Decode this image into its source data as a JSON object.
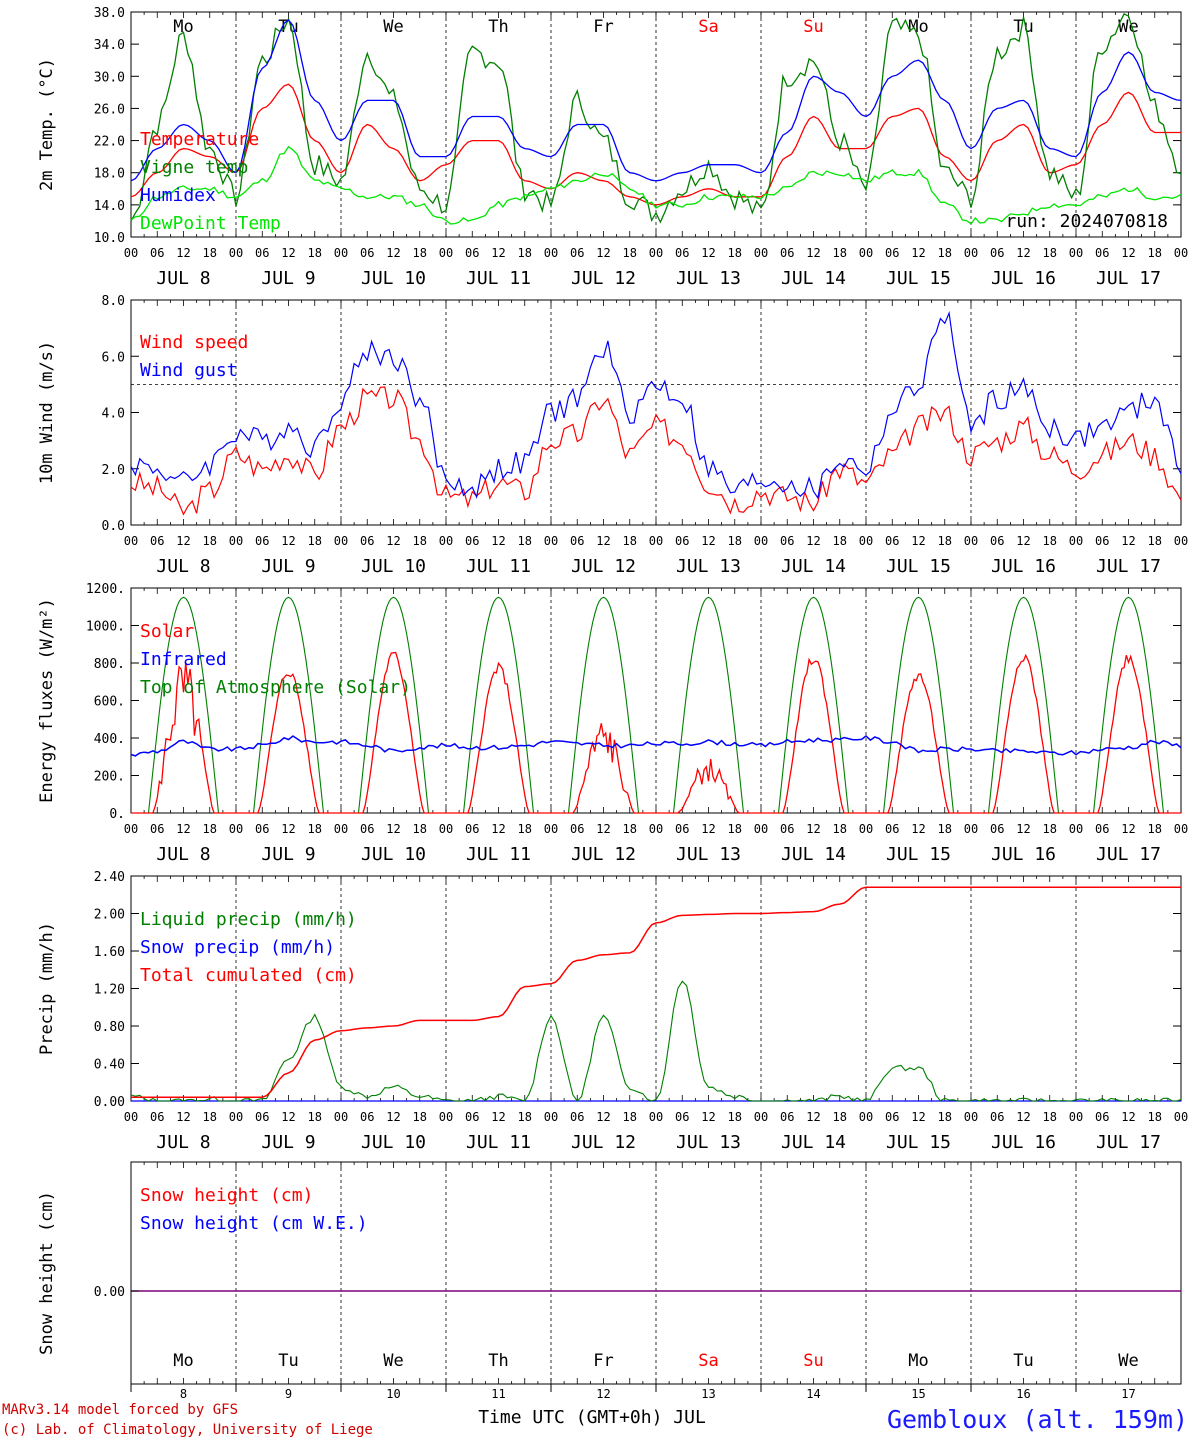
{
  "run_label": "run: 2024070818",
  "days": [
    {
      "name": "Mo",
      "weekend": false,
      "date": "JUL  8",
      "num": "8"
    },
    {
      "name": "Tu",
      "weekend": false,
      "date": "JUL  9",
      "num": "9"
    },
    {
      "name": "We",
      "weekend": false,
      "date": "JUL 10",
      "num": "10"
    },
    {
      "name": "Th",
      "weekend": false,
      "date": "JUL 11",
      "num": "11"
    },
    {
      "name": "Fr",
      "weekend": false,
      "date": "JUL 12",
      "num": "12"
    },
    {
      "name": "Sa",
      "weekend": true,
      "date": "JUL 13",
      "num": "13"
    },
    {
      "name": "Su",
      "weekend": true,
      "date": "JUL 14",
      "num": "14"
    },
    {
      "name": "Mo",
      "weekend": false,
      "date": "JUL 15",
      "num": "15"
    },
    {
      "name": "Tu",
      "weekend": false,
      "date": "JUL 16",
      "num": "16"
    },
    {
      "name": "We",
      "weekend": false,
      "date": "JUL 17",
      "num": "17"
    }
  ],
  "hour_labels": [
    "00",
    "06",
    "12",
    "18"
  ],
  "final_hour_label": "00",
  "x_axis_title": "Time UTC (GMT+0h) JUL",
  "footer": {
    "model": "MARv3.14 model forced by GFS",
    "lab": "(c) Lab. of Climatology, University of Liege",
    "station": "Gembloux (alt. 159m)"
  },
  "colors": {
    "red": "#ff0000",
    "blue": "#0000ff",
    "green": "#007f00",
    "lime": "#00e600",
    "weekend": "#ff0000",
    "purple": "#7f007f"
  },
  "chart_data": [
    {
      "id": "temp",
      "type": "line",
      "ylabel": "2m Temp. (°C)",
      "ylim": [
        10,
        38
      ],
      "yticks": [
        "10.0",
        "14.0",
        "18.0",
        "22.0",
        "26.0",
        "30.0",
        "34.0",
        "38.0"
      ],
      "grid": "vertical dashed at 00 UTC",
      "legend_position": "left",
      "x_hours": [
        0,
        6,
        12,
        18,
        24,
        30,
        36,
        42,
        48,
        54,
        60,
        66,
        72,
        78,
        84,
        90,
        96,
        102,
        108,
        114,
        120,
        126,
        132,
        138,
        144,
        150,
        156,
        162,
        168,
        174,
        180,
        186,
        192,
        198,
        204,
        210,
        216,
        222,
        228,
        234,
        240
      ],
      "series": [
        {
          "name": "Temperature",
          "color": "#ff0000",
          "values": [
            15,
            18,
            21,
            20,
            18,
            26,
            29,
            22,
            18,
            24,
            21,
            17,
            19,
            22,
            22,
            17,
            16,
            18,
            17,
            15,
            14,
            15,
            16,
            15,
            15,
            20,
            25,
            21,
            21,
            25,
            26,
            20,
            17,
            22,
            24,
            18,
            19,
            24,
            28,
            23,
            23
          ]
        },
        {
          "name": "Vigne temp",
          "color": "#007f00",
          "values": [
            12,
            24,
            35,
            21,
            15,
            32,
            37,
            19,
            17,
            33,
            27,
            16,
            14,
            33,
            32,
            16,
            14,
            27,
            22,
            15,
            13,
            16,
            19,
            15,
            13,
            30,
            32,
            22,
            16,
            36,
            35,
            18,
            15,
            33,
            36,
            18,
            15,
            34,
            38,
            26,
            19
          ]
        },
        {
          "name": "Humidex",
          "color": "#0000ff",
          "values": [
            17,
            21,
            24,
            22,
            18,
            31,
            37,
            27,
            22,
            27,
            27,
            20,
            20,
            25,
            25,
            21,
            20,
            24,
            24,
            18,
            17,
            18,
            19,
            19,
            18,
            23,
            30,
            28,
            25,
            30,
            32,
            27,
            21,
            26,
            27,
            21,
            20,
            28,
            33,
            28,
            27
          ]
        },
        {
          "name": "DewPoint Temp",
          "color": "#00e600",
          "values": [
            12,
            15,
            16,
            16,
            15,
            17,
            21,
            17,
            16,
            15,
            15,
            14,
            12,
            12,
            14,
            15,
            16,
            17,
            18,
            16,
            14,
            14,
            15,
            15,
            15,
            16,
            18,
            18,
            17,
            18,
            18,
            14,
            12,
            12,
            13,
            14,
            14,
            15,
            16,
            15,
            15
          ]
        }
      ]
    },
    {
      "id": "wind",
      "type": "line",
      "ylabel": "10m Wind (m/s)",
      "ylim": [
        0,
        8
      ],
      "yticks": [
        "0.0",
        "2.0",
        "4.0",
        "6.0",
        "8.0"
      ],
      "reference_line": 5.0,
      "legend_position": "left",
      "x_hours": [
        0,
        6,
        12,
        18,
        24,
        30,
        36,
        42,
        48,
        54,
        60,
        66,
        72,
        78,
        84,
        90,
        96,
        102,
        108,
        114,
        120,
        126,
        132,
        138,
        144,
        150,
        156,
        162,
        168,
        174,
        180,
        186,
        192,
        198,
        204,
        210,
        216,
        222,
        228,
        234,
        240
      ],
      "series": [
        {
          "name": "Wind speed",
          "color": "#ff0000",
          "values": [
            1.5,
            1.3,
            0.5,
            1.2,
            2.5,
            2.0,
            2.5,
            1.8,
            3.5,
            4.5,
            4.5,
            3.0,
            1.0,
            0.9,
            1.5,
            1.2,
            3.0,
            3.2,
            4.5,
            2.5,
            3.5,
            3.0,
            1.5,
            0.8,
            1.2,
            1.0,
            0.8,
            2.0,
            1.5,
            2.5,
            3.5,
            4.0,
            2.5,
            3.0,
            3.5,
            2.5,
            2.0,
            2.5,
            3.0,
            2.5,
            1.0
          ]
        },
        {
          "name": "Wind gust",
          "color": "#0000ff",
          "values": [
            2.2,
            2.0,
            1.5,
            2.2,
            3.3,
            3.0,
            3.5,
            2.8,
            4.5,
            6.2,
            6.0,
            4.5,
            1.6,
            1.3,
            2.0,
            2.2,
            4.0,
            4.5,
            6.3,
            4.0,
            5.0,
            4.5,
            2.0,
            1.2,
            1.6,
            1.5,
            1.2,
            2.3,
            2.0,
            4.0,
            5.0,
            7.5,
            3.5,
            4.5,
            4.8,
            3.5,
            3.0,
            3.5,
            4.0,
            4.5,
            2.0
          ]
        }
      ]
    },
    {
      "id": "energy",
      "type": "line",
      "ylabel": "Energy fluxes (W/m²)",
      "ylim": [
        0,
        1200
      ],
      "yticks": [
        "0.",
        "200.",
        "400.",
        "600.",
        "800.",
        "1000.",
        "1200."
      ],
      "legend_position": "left",
      "series": [
        {
          "name": "Solar",
          "color": "#ff0000",
          "daily_peak": [
            850,
            780,
            870,
            800,
            520,
            300,
            850,
            760,
            870,
            860
          ]
        },
        {
          "name": "Infrared",
          "color": "#0000ff",
          "values": [
            310,
            330,
            380,
            340,
            340,
            360,
            400,
            380,
            380,
            360,
            330,
            350,
            360,
            350,
            350,
            360,
            380,
            370,
            360,
            360,
            370,
            370,
            380,
            370,
            360,
            380,
            390,
            390,
            400,
            380,
            330,
            340,
            340,
            330,
            330,
            320,
            320,
            340,
            350,
            380,
            360
          ]
        },
        {
          "name": "Top of Atmosphere (Solar)",
          "color": "#007f00",
          "daily_peak": 1150
        }
      ]
    },
    {
      "id": "precip",
      "type": "line",
      "ylabel": "Precip (mm/h)",
      "ylim": [
        0,
        2.4
      ],
      "yticks": [
        "0.00",
        "0.40",
        "0.80",
        "1.20",
        "1.60",
        "2.00",
        "2.40"
      ],
      "legend_position": "left",
      "x_hours": [
        0,
        6,
        12,
        18,
        24,
        30,
        36,
        42,
        48,
        54,
        60,
        66,
        72,
        78,
        84,
        90,
        96,
        102,
        108,
        114,
        120,
        126,
        132,
        138,
        144,
        150,
        156,
        162,
        168,
        174,
        180,
        186,
        192,
        198,
        204,
        210,
        216,
        222,
        228,
        234,
        240
      ],
      "series": [
        {
          "name": "Liquid precip (mm/h)",
          "color": "#007f00",
          "values": [
            0.05,
            0.0,
            0.0,
            0.02,
            0.0,
            0.0,
            0.45,
            0.9,
            0.15,
            0.05,
            0.15,
            0.05,
            0.0,
            0.0,
            0.05,
            0.0,
            0.9,
            0.0,
            0.9,
            0.15,
            0.0,
            1.3,
            0.15,
            0.05,
            0.0,
            0.0,
            0.0,
            0.05,
            0.0,
            0.35,
            0.35,
            0.0,
            0.0,
            0.0,
            0.0,
            0.0,
            0.0,
            0.0,
            0.0,
            0.0,
            0.0
          ]
        },
        {
          "name": "Snow precip (mm/h)",
          "color": "#0000ff",
          "values": [
            0,
            0,
            0,
            0,
            0,
            0,
            0,
            0,
            0,
            0,
            0,
            0,
            0,
            0,
            0,
            0,
            0,
            0,
            0,
            0,
            0,
            0,
            0,
            0,
            0,
            0,
            0,
            0,
            0,
            0,
            0,
            0,
            0,
            0,
            0,
            0,
            0,
            0,
            0,
            0,
            0
          ]
        },
        {
          "name": "Total cumulated (cm)",
          "color": "#ff0000",
          "values": [
            0.04,
            0.04,
            0.04,
            0.04,
            0.04,
            0.04,
            0.3,
            0.65,
            0.75,
            0.78,
            0.8,
            0.86,
            0.86,
            0.86,
            0.9,
            1.22,
            1.25,
            1.5,
            1.56,
            1.58,
            1.9,
            1.98,
            1.99,
            2.0,
            2.0,
            2.01,
            2.02,
            2.1,
            2.28,
            2.28,
            2.28,
            2.28,
            2.28,
            2.28,
            2.28,
            2.28,
            2.28,
            2.28,
            2.28,
            2.28,
            2.28
          ]
        }
      ]
    },
    {
      "id": "snow",
      "type": "line",
      "ylabel": "Snow height (cm)",
      "yticks": [
        "0.00"
      ],
      "legend_position": "left",
      "series": [
        {
          "name": "Snow height (cm)",
          "color": "#ff0000",
          "values": [
            0,
            0
          ]
        },
        {
          "name": "Snow height (cm W.E.)",
          "color": "#0000ff",
          "values": [
            0,
            0
          ]
        }
      ]
    }
  ]
}
